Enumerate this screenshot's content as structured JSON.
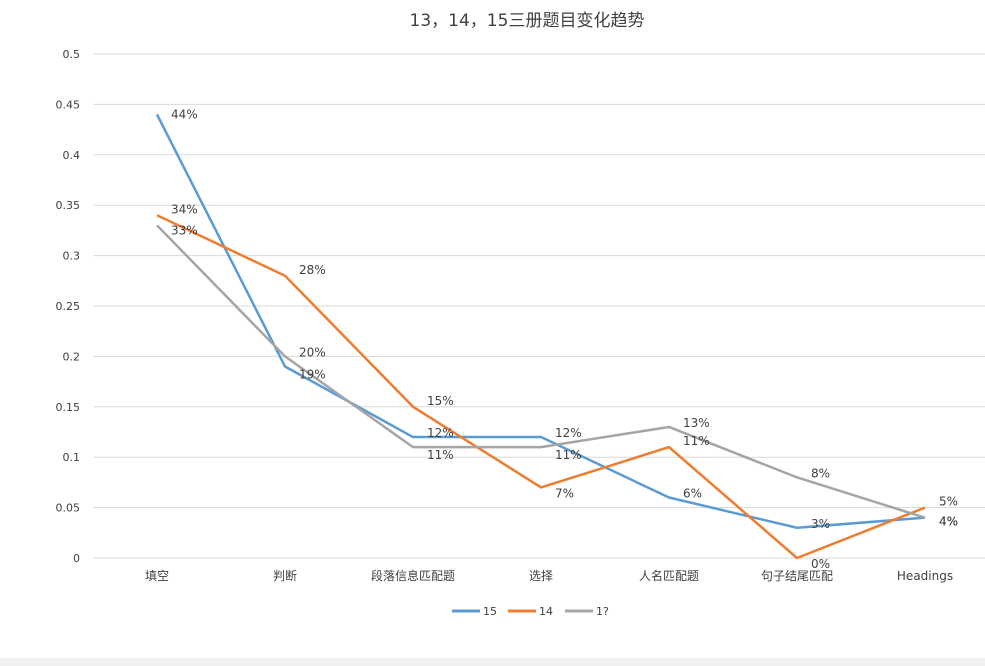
{
  "chart_data": {
    "type": "line",
    "title": "13，14，15三册题目变化趋势",
    "xlabel": "",
    "ylabel": "",
    "categories": [
      "填空",
      "判断",
      "段落信息匹配题",
      "选择",
      "人名匹配题",
      "句子结尾匹配",
      "Headings"
    ],
    "ylim": [
      0,
      0.5
    ],
    "yticks": [
      "0",
      "0.05",
      "0.1",
      "0.15",
      "0.2",
      "0.25",
      "0.3",
      "0.35",
      "0.4",
      "0.45",
      "0.5"
    ],
    "grid": true,
    "legend_position": "bottom",
    "series": [
      {
        "name": "15",
        "color": "#5b9bd5",
        "values": [
          0.44,
          0.19,
          0.12,
          0.12,
          0.06,
          0.03,
          0.04
        ],
        "labels": [
          "44%",
          "19%",
          "12%",
          "12%",
          "6%",
          "3%",
          "4%"
        ]
      },
      {
        "name": "14",
        "color": "#ed7d31",
        "values": [
          0.34,
          0.28,
          0.15,
          0.07,
          0.11,
          0.0,
          0.05
        ],
        "labels": [
          "34%",
          "28%",
          "15%",
          "7%",
          "11%",
          "0%",
          "5%"
        ]
      },
      {
        "name": "1?",
        "color": "#a5a5a5",
        "values": [
          0.33,
          0.2,
          0.11,
          0.11,
          0.13,
          0.08,
          0.04
        ],
        "labels": [
          "33%",
          "20%",
          "11%",
          "11%",
          "13%",
          "8%",
          "4%"
        ]
      }
    ]
  }
}
